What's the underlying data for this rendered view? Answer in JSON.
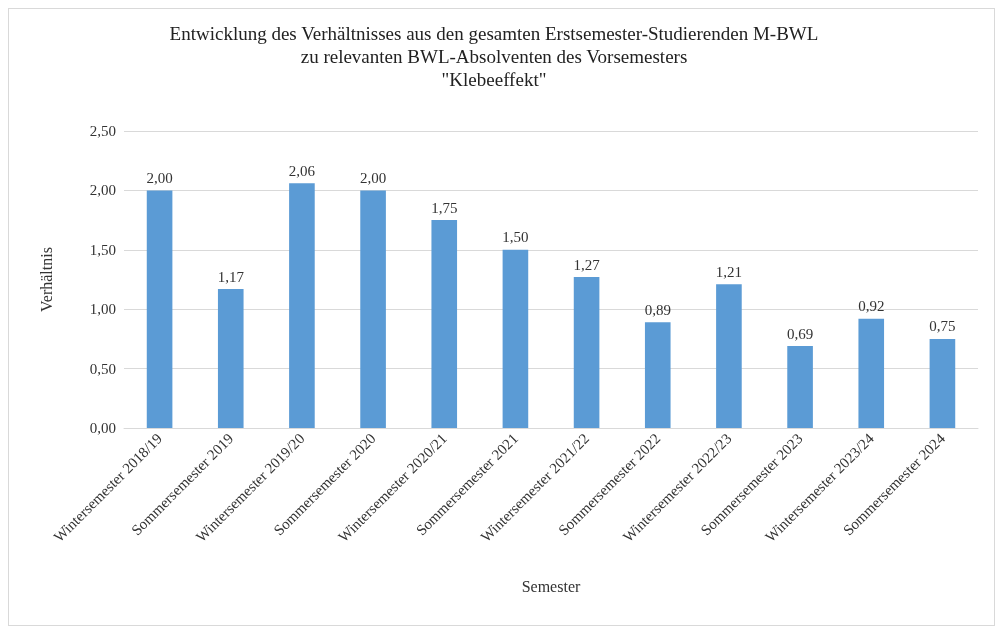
{
  "chart_data": {
    "type": "bar",
    "title": "Entwicklung des Verhältnisses aus den gesamten Erstsemester-Studierenden M-BWL\nzu relevanten BWL-Absolventen des Vorsemesters\n\"Klebeeffekt\"",
    "xlabel": "Semester",
    "ylabel": "Verhältnis",
    "categories": [
      "Wintersemester 2018/19",
      "Sommersemester 2019",
      "Wintersemester 2019/20",
      "Sommersemester 2020",
      "Wintersemester 2020/21",
      "Sommersemester 2021",
      "Wintersemester 2021/22",
      "Sommersemester 2022",
      "Wintersemester 2022/23",
      "Sommersemester 2023",
      "Wintersemester 2023/24",
      "Sommersemester 2024"
    ],
    "values": [
      2.0,
      1.17,
      2.06,
      2.0,
      1.75,
      1.5,
      1.27,
      0.89,
      1.21,
      0.69,
      0.92,
      0.75
    ],
    "value_labels": [
      "2,00",
      "1,17",
      "2,06",
      "2,00",
      "1,75",
      "1,50",
      "1,27",
      "0,89",
      "1,21",
      "0,69",
      "0,92",
      "0,75"
    ],
    "color": "#5b9bd5",
    "ylim": [
      0,
      2.5
    ],
    "yticks": [
      {
        "value": 0,
        "label": "0,00"
      },
      {
        "value": 0.5,
        "label": "0,50"
      },
      {
        "value": 1,
        "label": "1,00"
      },
      {
        "value": 1.5,
        "label": "1,50"
      },
      {
        "value": 2,
        "label": "2,00"
      },
      {
        "value": 2.5,
        "label": "2,50"
      }
    ],
    "grid": "y"
  }
}
